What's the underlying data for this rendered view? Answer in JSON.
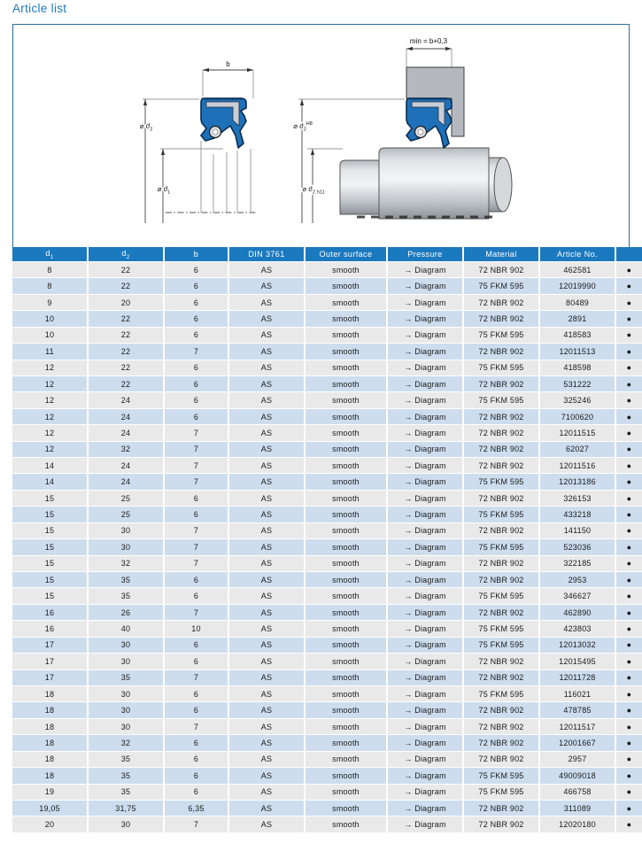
{
  "title": "Article list",
  "diagram": {
    "labels": {
      "b": "b",
      "min": "min = b+0,3",
      "dia_d": "⌀ d",
      "sub1": "1",
      "sub2": "2",
      "h8": "H8",
      "h11": "h11"
    }
  },
  "colors": {
    "header_blue": "#1b79bf",
    "row_gray": "#e9e9e9",
    "row_blue": "#cdddee",
    "seal_blue": "#1e71b8",
    "box_border": "#2e6d90",
    "title_blue": "#1b79bf"
  },
  "table": {
    "bullet": "●",
    "columns": [
      {
        "key": "d1",
        "text": "d",
        "sub": "1"
      },
      {
        "key": "d2",
        "text": "d",
        "sub": "2"
      },
      {
        "key": "b",
        "text": "b",
        "sub": null
      },
      {
        "key": "din-3761",
        "text": "DIN 3761",
        "sub": null
      },
      {
        "key": "outer-surface",
        "text": "Outer surface",
        "sub": null
      },
      {
        "key": "pressure",
        "text": "Pressure",
        "sub": null
      },
      {
        "key": "material",
        "text": "Material",
        "sub": null
      },
      {
        "key": "article-no",
        "text": "Article No.",
        "sub": null
      },
      {
        "key": "availability",
        "text": "",
        "sub": null
      }
    ],
    "rows": [
      [
        "8",
        "22",
        "6",
        "AS",
        "smooth",
        "→ Diagram",
        "72 NBR 902",
        "462581"
      ],
      [
        "8",
        "22",
        "6",
        "AS",
        "smooth",
        "→ Diagram",
        "75 FKM 595",
        "12019990"
      ],
      [
        "9",
        "20",
        "6",
        "AS",
        "smooth",
        "→ Diagram",
        "72 NBR 902",
        "80489"
      ],
      [
        "10",
        "22",
        "6",
        "AS",
        "smooth",
        "→ Diagram",
        "72 NBR 902",
        "2891"
      ],
      [
        "10",
        "22",
        "6",
        "AS",
        "smooth",
        "→ Diagram",
        "75 FKM 595",
        "418583"
      ],
      [
        "11",
        "22",
        "7",
        "AS",
        "smooth",
        "→ Diagram",
        "72 NBR 902",
        "12011513"
      ],
      [
        "12",
        "22",
        "6",
        "AS",
        "smooth",
        "→ Diagram",
        "75 FKM 595",
        "418598"
      ],
      [
        "12",
        "22",
        "6",
        "AS",
        "smooth",
        "→ Diagram",
        "72 NBR 902",
        "531222"
      ],
      [
        "12",
        "24",
        "6",
        "AS",
        "smooth",
        "→ Diagram",
        "75 FKM 595",
        "325246"
      ],
      [
        "12",
        "24",
        "6",
        "AS",
        "smooth",
        "→ Diagram",
        "72 NBR 902",
        "7100620"
      ],
      [
        "12",
        "24",
        "7",
        "AS",
        "smooth",
        "→ Diagram",
        "72 NBR 902",
        "12011515"
      ],
      [
        "12",
        "32",
        "7",
        "AS",
        "smooth",
        "→ Diagram",
        "72 NBR 902",
        "62027"
      ],
      [
        "14",
        "24",
        "7",
        "AS",
        "smooth",
        "→ Diagram",
        "72 NBR 902",
        "12011516"
      ],
      [
        "14",
        "24",
        "7",
        "AS",
        "smooth",
        "→ Diagram",
        "75 FKM 595",
        "12013186"
      ],
      [
        "15",
        "25",
        "6",
        "AS",
        "smooth",
        "→ Diagram",
        "72 NBR 902",
        "326153"
      ],
      [
        "15",
        "25",
        "6",
        "AS",
        "smooth",
        "→ Diagram",
        "75 FKM 595",
        "433218"
      ],
      [
        "15",
        "30",
        "7",
        "AS",
        "smooth",
        "→ Diagram",
        "72 NBR 902",
        "141150"
      ],
      [
        "15",
        "30",
        "7",
        "AS",
        "smooth",
        "→ Diagram",
        "75 FKM 595",
        "523036"
      ],
      [
        "15",
        "32",
        "7",
        "AS",
        "smooth",
        "→ Diagram",
        "72 NBR 902",
        "322185"
      ],
      [
        "15",
        "35",
        "6",
        "AS",
        "smooth",
        "→ Diagram",
        "72 NBR 902",
        "2953"
      ],
      [
        "15",
        "35",
        "6",
        "AS",
        "smooth",
        "→ Diagram",
        "75 FKM 595",
        "346627"
      ],
      [
        "16",
        "26",
        "7",
        "AS",
        "smooth",
        "→ Diagram",
        "72 NBR 902",
        "462890"
      ],
      [
        "16",
        "40",
        "10",
        "AS",
        "smooth",
        "→ Diagram",
        "75 FKM 595",
        "423803"
      ],
      [
        "17",
        "30",
        "6",
        "AS",
        "smooth",
        "→ Diagram",
        "75 FKM 595",
        "12013032"
      ],
      [
        "17",
        "30",
        "6",
        "AS",
        "smooth",
        "→ Diagram",
        "72 NBR 902",
        "12015495"
      ],
      [
        "17",
        "35",
        "7",
        "AS",
        "smooth",
        "→ Diagram",
        "72 NBR 902",
        "12011728"
      ],
      [
        "18",
        "30",
        "6",
        "AS",
        "smooth",
        "→ Diagram",
        "75 FKM 595",
        "116021"
      ],
      [
        "18",
        "30",
        "6",
        "AS",
        "smooth",
        "→ Diagram",
        "72 NBR 902",
        "478785"
      ],
      [
        "18",
        "30",
        "7",
        "AS",
        "smooth",
        "→ Diagram",
        "72 NBR 902",
        "12011517"
      ],
      [
        "18",
        "32",
        "6",
        "AS",
        "smooth",
        "→ Diagram",
        "72 NBR 902",
        "12001667"
      ],
      [
        "18",
        "35",
        "6",
        "AS",
        "smooth",
        "→ Diagram",
        "72 NBR 902",
        "2957"
      ],
      [
        "18",
        "35",
        "6",
        "AS",
        "smooth",
        "→ Diagram",
        "75 FKM 595",
        "49009018"
      ],
      [
        "19",
        "35",
        "6",
        "AS",
        "smooth",
        "→ Diagram",
        "75 FKM 595",
        "466758"
      ],
      [
        "19,05",
        "31,75",
        "6,35",
        "AS",
        "smooth",
        "→ Diagram",
        "72 NBR 902",
        "311089"
      ],
      [
        "20",
        "30",
        "7",
        "AS",
        "smooth",
        "→ Diagram",
        "72 NBR 902",
        "12020180"
      ]
    ]
  }
}
